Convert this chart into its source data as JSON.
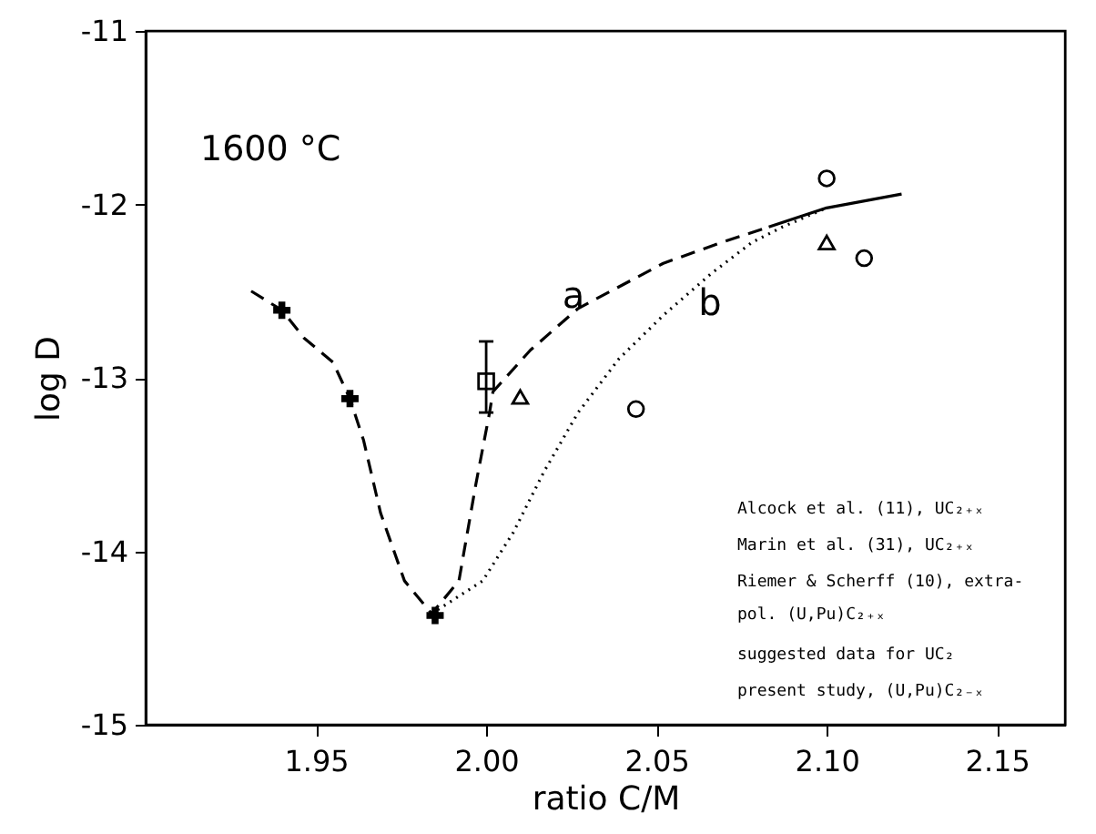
{
  "chart_data": {
    "type": "scatter",
    "xlabel": "ratio C/M",
    "ylabel": "log D",
    "xlim": [
      1.9,
      2.17
    ],
    "xticks": [
      1.95,
      {
        "value": 2.0,
        "label": "2.00"
      },
      2.05,
      {
        "value": 2.1,
        "label": "2.10"
      },
      2.15
    ],
    "ylim": [
      -15,
      -11
    ],
    "yticks": [
      {
        "value": -15,
        "label": "-15"
      },
      {
        "value": -14,
        "label": "-14"
      },
      {
        "value": -13,
        "label": "-13"
      },
      {
        "value": -12,
        "label": "-12"
      },
      {
        "value": -11,
        "label": "-11"
      }
    ],
    "grid": false,
    "series": [
      {
        "type": "line",
        "line_style": "dashed",
        "color": "#000000",
        "x": [
          1.931,
          1.94,
          1.9465,
          1.955,
          1.96,
          1.964,
          1.969,
          1.976,
          1.984,
          1.992,
          1.997,
          2.001,
          2.002,
          2.013,
          2.027,
          2.052,
          2.069,
          2.083
        ],
        "values": [
          -12.5,
          -12.61,
          -12.77,
          -12.91,
          -13.12,
          -13.36,
          -13.78,
          -14.17,
          -14.36,
          -14.17,
          -13.61,
          -13.2,
          -13.08,
          -12.84,
          -12.6,
          -12.34,
          -12.22,
          -12.13
        ]
      },
      {
        "type": "line",
        "line_style": "solid",
        "color": "#000000",
        "x": [
          2.083,
          2.1,
          2.122
        ],
        "values": [
          -12.13,
          -12.02,
          -11.94
        ]
      },
      {
        "type": "line",
        "line_style": "dotted",
        "color": "#000000",
        "x": [
          1.984,
          1.999,
          2.008,
          2.017,
          2.027,
          2.039,
          2.052,
          2.066,
          2.078,
          2.087,
          2.1
        ],
        "values": [
          -14.36,
          -14.17,
          -13.89,
          -13.54,
          -13.2,
          -12.89,
          -12.64,
          -12.4,
          -12.22,
          -12.13,
          -12.02
        ]
      },
      {
        "marker": "cross",
        "color": "#000000",
        "x": [
          1.94,
          1.96,
          1.985
        ],
        "values": [
          -12.61,
          -13.12,
          -14.37
        ]
      },
      {
        "marker": "square",
        "color": "#000000",
        "x": [
          2.0
        ],
        "values": [
          -13.02
        ],
        "errors": [
          [
            -13.2,
            -12.79
          ]
        ]
      },
      {
        "marker": "triangle",
        "color": "#000000",
        "x": [
          2.01,
          2.1
        ],
        "values": [
          -13.11,
          -12.22
        ]
      },
      {
        "marker": "circle",
        "color": "#000000",
        "x": [
          2.044,
          2.111
        ],
        "values": [
          -13.18,
          -12.31
        ]
      },
      {
        "marker": "circle",
        "color": "#000000",
        "x": [
          2.1
        ],
        "values": [
          -11.85
        ]
      }
    ],
    "annotations": [
      "1600 °C",
      "a",
      "b",
      "Alcock et al. (11), UC₂₊ₓ",
      "Marin et al. (31), UC₂₊ₓ",
      "Riemer & Scherff (10), extra-\n        pol. (U,Pu)C₂₊ₓ",
      "suggested data for UC₂",
      "present study, (U,Pu)C₂₋ₓ"
    ]
  }
}
